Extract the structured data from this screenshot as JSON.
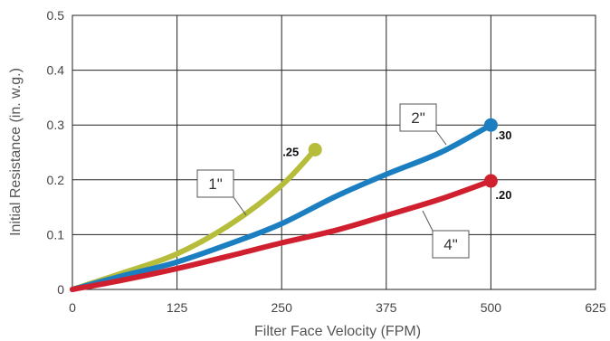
{
  "chart_data": {
    "type": "line",
    "xlabel": "Filter Face Velocity (FPM)",
    "ylabel": "Initial Resistance (in. w.g.)",
    "xlim": [
      0,
      625
    ],
    "ylim": [
      0,
      0.5
    ],
    "x_ticks": [
      "0",
      "125",
      "250",
      "375",
      "500",
      "625"
    ],
    "y_ticks": [
      "0",
      "0.1",
      "0.2",
      "0.3",
      "0.4",
      "0.5"
    ],
    "grid": true,
    "series": [
      {
        "name": "1\"",
        "color": "#b5bd3a",
        "end_label": ".25",
        "points": [
          [
            0,
            0
          ],
          [
            60,
            0.03
          ],
          [
            125,
            0.065
          ],
          [
            190,
            0.12
          ],
          [
            250,
            0.19
          ],
          [
            290,
            0.255
          ]
        ]
      },
      {
        "name": "2\"",
        "color": "#1a7ec0",
        "end_label": ".30",
        "points": [
          [
            0,
            0
          ],
          [
            60,
            0.025
          ],
          [
            125,
            0.05
          ],
          [
            200,
            0.09
          ],
          [
            250,
            0.12
          ],
          [
            315,
            0.17
          ],
          [
            375,
            0.21
          ],
          [
            440,
            0.25
          ],
          [
            500,
            0.3
          ]
        ]
      },
      {
        "name": "4\"",
        "color": "#d0202f",
        "end_label": ".20",
        "points": [
          [
            0,
            0
          ],
          [
            60,
            0.017
          ],
          [
            125,
            0.038
          ],
          [
            190,
            0.062
          ],
          [
            250,
            0.085
          ],
          [
            315,
            0.108
          ],
          [
            375,
            0.135
          ],
          [
            440,
            0.165
          ],
          [
            500,
            0.198
          ]
        ]
      }
    ]
  }
}
